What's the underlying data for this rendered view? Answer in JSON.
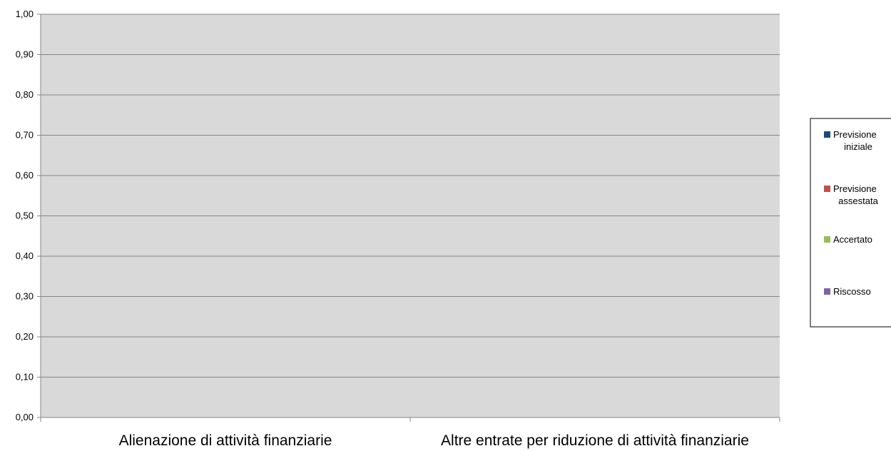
{
  "chart_data": {
    "type": "bar",
    "title": "",
    "xlabel": "",
    "ylabel": "",
    "categories": [
      "Alienazione di attività finanziarie",
      "Altre entrate per riduzione di attività finanziarie"
    ],
    "series": [
      {
        "name": "Previsione iniziale",
        "color": "#1F497D",
        "values": [
          0,
          0
        ]
      },
      {
        "name": "Previsione assestata",
        "color": "#C0504D",
        "values": [
          0,
          0
        ]
      },
      {
        "name": "Accertato",
        "color": "#9BBB59",
        "values": [
          0,
          0
        ]
      },
      {
        "name": "Riscosso",
        "color": "#8064A2",
        "values": [
          0,
          0
        ]
      }
    ],
    "ylim": [
      0,
      1
    ],
    "yticks": [
      "0,00",
      "0,10",
      "0,20",
      "0,30",
      "0,40",
      "0,50",
      "0,60",
      "0,70",
      "0,80",
      "0,90",
      "1,00"
    ],
    "grid": true,
    "legend_position": "right",
    "plot_background": "#D9D9D9"
  }
}
